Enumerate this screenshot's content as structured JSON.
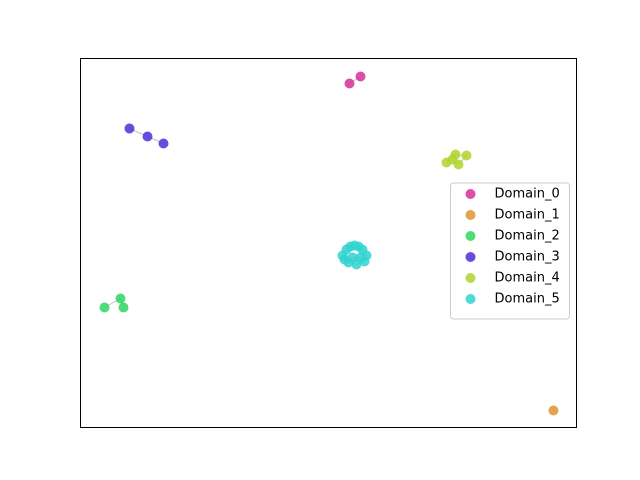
{
  "chart_data": {
    "type": "scatter",
    "xlim": [
      0,
      496
    ],
    "ylim": [
      0,
      369
    ],
    "legend": "center right",
    "series": [
      {
        "name": "Domain_0",
        "color": "#d62f98",
        "x": [
          269,
          280
        ],
        "values": [
          344,
          351
        ]
      },
      {
        "name": "Domain_1",
        "color": "#df9330",
        "x": [
          473
        ],
        "values": [
          17
        ]
      },
      {
        "name": "Domain_2",
        "color": "#2fd662",
        "x": [
          24,
          40,
          43
        ],
        "values": [
          120,
          129,
          120
        ]
      },
      {
        "name": "Domain_3",
        "color": "#4f2fd8",
        "x": [
          49,
          67,
          83
        ],
        "values": [
          299,
          291,
          284
        ]
      },
      {
        "name": "Domain_4",
        "color": "#b0d42a",
        "x": [
          366,
          375,
          386,
          378,
          372
        ],
        "values": [
          265,
          273,
          272,
          263,
          268
        ]
      },
      {
        "name": "Domain_5",
        "color": "#2fd4d0",
        "x": [
          262,
          266,
          270,
          274,
          278,
          282,
          286,
          268,
          276,
          284,
          264,
          272,
          280
        ],
        "values": [
          172,
          178,
          181,
          182,
          181,
          178,
          172,
          165,
          163,
          166,
          168,
          170,
          170
        ]
      }
    ]
  }
}
